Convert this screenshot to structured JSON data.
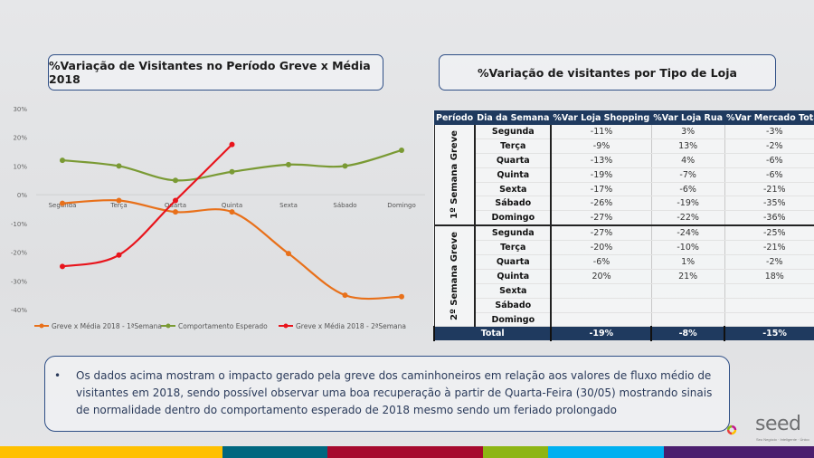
{
  "titles": {
    "left": "%Variação de Visitantes no Período Greve x Média 2018",
    "right": "%Variação de visitantes por Tipo de Loja"
  },
  "chart_data": {
    "type": "line",
    "title": "%Variação de Visitantes no Período Greve x Média 2018",
    "xlabel": "",
    "ylabel": "",
    "categories": [
      "Segunda",
      "Terça",
      "Quarta",
      "Quinta",
      "Sexta",
      "Sábado",
      "Domingo"
    ],
    "yticks": [
      "30%",
      "20%",
      "10%",
      "0%",
      "-10%",
      "-20%",
      "-30%",
      "-40%"
    ],
    "ylim": [
      -40,
      30
    ],
    "grid": false,
    "legend_position": "bottom",
    "series": [
      {
        "name": "Greve x Média 2018 - 1ªSemana",
        "color": "#e8701a",
        "values": [
          -3,
          -2,
          -6,
          -6,
          -20.5,
          -35,
          -35.5
        ]
      },
      {
        "name": "Comportamento Esperado",
        "color": "#7a9a34",
        "values": [
          12,
          10,
          5,
          8,
          10.5,
          10,
          15.5
        ]
      },
      {
        "name": "Greve x Média 2018 - 2ªSemana",
        "color": "#e8141c",
        "values": [
          -25,
          -21,
          -2,
          17.5,
          null,
          null,
          null
        ]
      }
    ]
  },
  "table": {
    "headers": [
      "Período",
      "Dia da Semana",
      "%Var Loja Shopping",
      "%Var Loja Rua",
      "%Var Mercado Total"
    ],
    "groups": [
      {
        "period": "1º Semana Greve",
        "rows": [
          [
            "Segunda",
            "-11%",
            "3%",
            "-3%"
          ],
          [
            "Terça",
            "-9%",
            "13%",
            "-2%"
          ],
          [
            "Quarta",
            "-13%",
            "4%",
            "-6%"
          ],
          [
            "Quinta",
            "-19%",
            "-7%",
            "-6%"
          ],
          [
            "Sexta",
            "-17%",
            "-6%",
            "-21%"
          ],
          [
            "Sábado",
            "-26%",
            "-19%",
            "-35%"
          ],
          [
            "Domingo",
            "-27%",
            "-22%",
            "-36%"
          ]
        ]
      },
      {
        "period": "2º Semana Greve",
        "rows": [
          [
            "Segunda",
            "-27%",
            "-24%",
            "-25%"
          ],
          [
            "Terça",
            "-20%",
            "-10%",
            "-21%"
          ],
          [
            "Quarta",
            "-6%",
            "1%",
            "-2%"
          ],
          [
            "Quinta",
            "20%",
            "21%",
            "18%"
          ],
          [
            "Sexta",
            "",
            "",
            ""
          ],
          [
            "Sábado",
            "",
            "",
            ""
          ],
          [
            "Domingo",
            "",
            "",
            ""
          ]
        ]
      }
    ],
    "total": {
      "label": "Total",
      "values": [
        "-19%",
        "-8%",
        "-15%"
      ]
    }
  },
  "note": {
    "bullet": "•",
    "text": "Os dados acima mostram o impacto gerado pela greve dos caminhoneiros em relação aos valores de fluxo médio de visitantes em  2018, sendo possível observar uma boa recuperação à partir de Quarta-Feira (30/05) mostrando sinais de normalidade dentro do comportamento esperado de 2018 mesmo sendo um feriado prolongado"
  },
  "logo": {
    "text": "seed",
    "tagline": "Seu Negócio · Inteligente · Único"
  },
  "colors": {
    "header_navy": "#1f3a5f",
    "bar": [
      "#ffc000",
      "#00677f",
      "#a6092d",
      "#8db514",
      "#00b0f0",
      "#4b1e6e"
    ]
  }
}
